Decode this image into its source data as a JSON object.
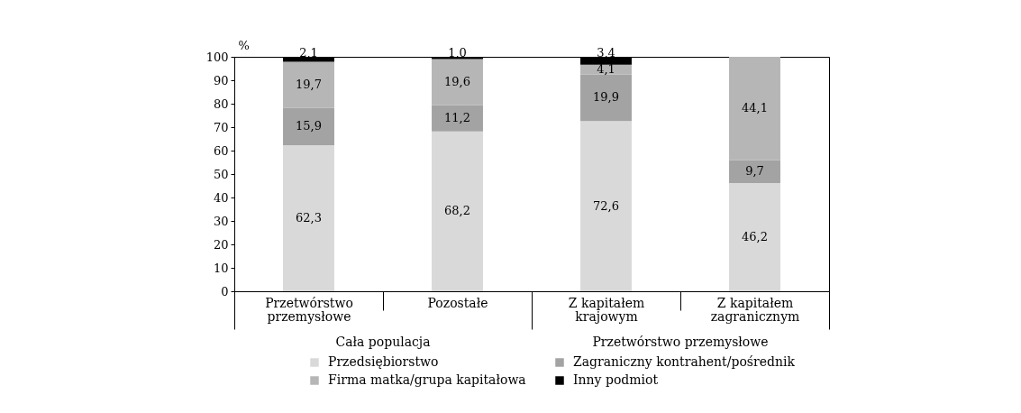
{
  "chart_data": {
    "type": "bar",
    "stacked": true,
    "ylabel": "%",
    "categories": [
      "Przetwórstwo przemysłowe",
      "Pozostałe",
      "Z kapitałem krajowym",
      "Z kapitałem zagranicznym"
    ],
    "series": [
      {
        "name": "Przedsiębiorstwo",
        "color": "#d9d9d9",
        "values": [
          62.3,
          68.2,
          72.6,
          46.2
        ],
        "value_labels": [
          "62,3",
          "68,2",
          "72,6",
          "46,2"
        ]
      },
      {
        "name": "Zagraniczny kontrahent/pośrednik",
        "color": "#a3a3a3",
        "values": [
          15.9,
          11.2,
          19.9,
          9.7
        ],
        "value_labels": [
          "15,9",
          "11,2",
          "19,9",
          "9,7"
        ]
      },
      {
        "name": "Firma matka/grupa kapitałowa",
        "color": "#b6b6b6",
        "values": [
          19.7,
          19.6,
          4.1,
          44.1
        ],
        "value_labels": [
          "19,7",
          "19,6",
          "4,1",
          "44,1"
        ]
      },
      {
        "name": "Inny podmiot",
        "color": "#000000",
        "values": [
          2.1,
          1.0,
          3.4,
          null
        ],
        "value_labels": [
          "2,1",
          "1,0",
          "3,4",
          null
        ]
      }
    ],
    "ylim": [
      0,
      100
    ],
    "yticks": [
      0,
      10,
      20,
      30,
      40,
      50,
      60,
      70,
      80,
      90,
      100
    ],
    "legend": "bottom",
    "grid": false,
    "annotations": [
      "Cała populacja",
      "Przetwórstwo przemysłowe"
    ]
  }
}
